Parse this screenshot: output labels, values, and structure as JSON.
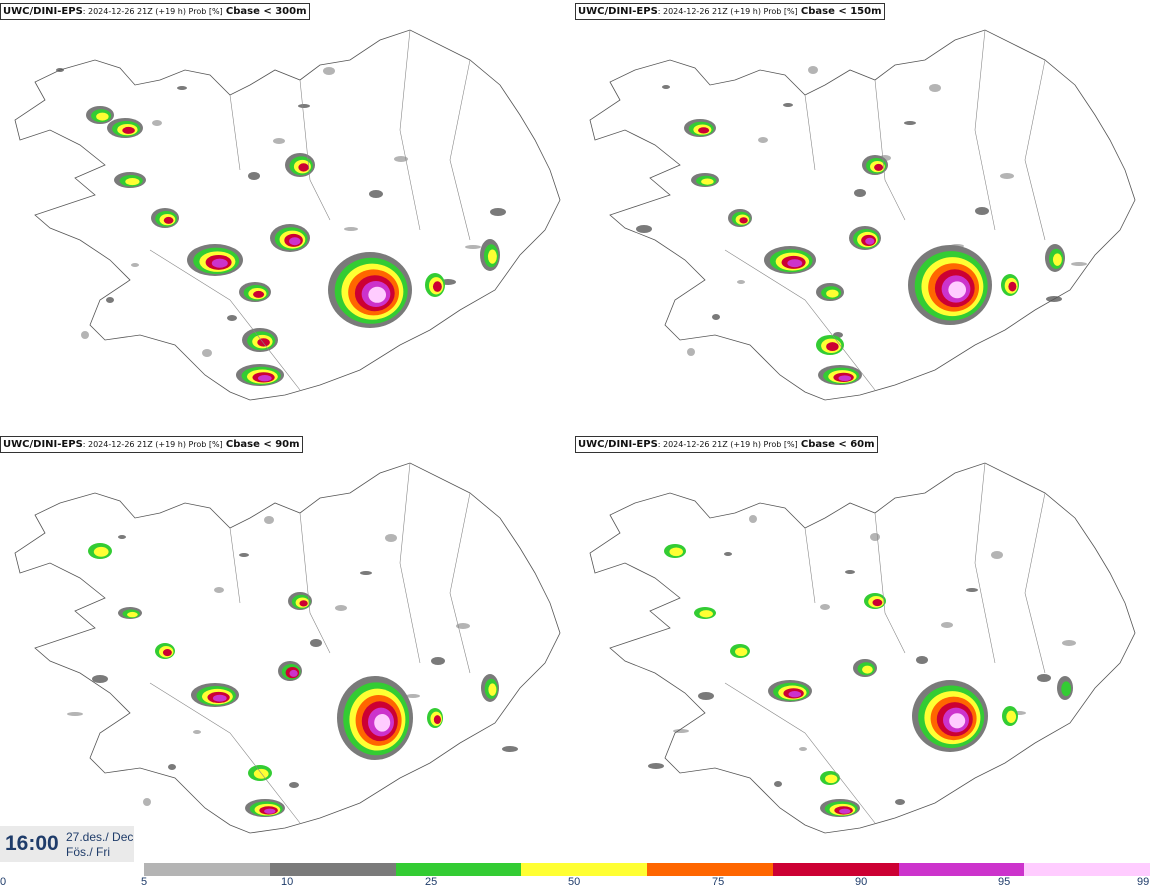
{
  "panels": [
    {
      "model": "UWC/DINI-EPS",
      "meta": ": 2024-12-26 21Z (+19 h) Prob [%]",
      "param": "Cbase < 300m"
    },
    {
      "model": "UWC/DINI-EPS",
      "meta": ": 2024-12-26 21Z (+19 h) Prob [%]",
      "param": "Cbase < 150m"
    },
    {
      "model": "UWC/DINI-EPS",
      "meta": ": 2024-12-26 21Z (+19 h) Prob [%]",
      "param": "Cbase < 90m"
    },
    {
      "model": "UWC/DINI-EPS",
      "meta": ": 2024-12-26 21Z (+19 h) Prob [%]",
      "param": "Cbase < 60m"
    }
  ],
  "valid_time": {
    "clock": "16:00",
    "date_line1": "27.des./ Dec",
    "date_line2": "Fös./ Fri"
  },
  "legend": {
    "ticks": [
      "0",
      "5",
      "10",
      "25",
      "50",
      "75",
      "90",
      "95",
      "99"
    ],
    "colors": [
      "#b4b4b4",
      "#7a7a7a",
      "#33cc33",
      "#ffff33",
      "#ff6600",
      "#cc0033",
      "#cc33cc",
      "#ffccff"
    ]
  }
}
